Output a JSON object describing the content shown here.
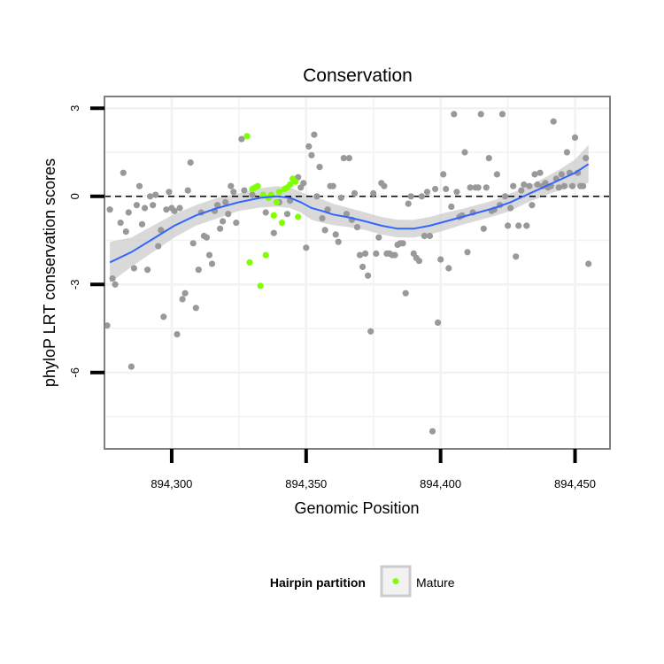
{
  "chart_data": {
    "type": "scatter",
    "title": "Conservation",
    "xlabel": "Genomic Position",
    "ylabel": "phyloP LRT conservation scores",
    "xlim": [
      894275,
      894463
    ],
    "ylim": [
      -8.6,
      3.4
    ],
    "x_ticks": [
      894300,
      894350,
      894400,
      894450
    ],
    "x_tick_labels": [
      "894,300",
      "894,350",
      "894,400",
      "894,450"
    ],
    "y_ticks": [
      3,
      0,
      -3,
      -6
    ],
    "y_tick_labels": [
      "3",
      "0",
      "-3",
      "-6"
    ],
    "reference_line_y": 0,
    "grid": true,
    "legend": {
      "title": "Hairpin partition",
      "position": "bottom",
      "entries": [
        {
          "name": "Mature",
          "color": "#7fff00"
        }
      ]
    },
    "colors": {
      "points": "#999999",
      "mature": "#7fff00",
      "smooth_line": "#3366ff",
      "smooth_band": "#cccccc",
      "panel_border": "#7f7f7f",
      "grid": "#f2f2f2"
    },
    "series": [
      {
        "name": "",
        "color": "#999999",
        "points": [
          [
            894276,
            -4.4
          ],
          [
            894277,
            -0.45
          ],
          [
            894278,
            -2.8
          ],
          [
            894279,
            -3.0
          ],
          [
            894281,
            -0.9
          ],
          [
            894282,
            0.8
          ],
          [
            894283,
            -1.2
          ],
          [
            894284,
            -0.55
          ],
          [
            894285,
            -5.8
          ],
          [
            894286,
            -2.45
          ],
          [
            894287,
            -0.3
          ],
          [
            894288,
            0.35
          ],
          [
            894289,
            -0.95
          ],
          [
            894290,
            -0.4
          ],
          [
            894291,
            -2.5
          ],
          [
            894292,
            0.0
          ],
          [
            894293,
            -0.3
          ],
          [
            894294,
            0.05
          ],
          [
            894295,
            -1.7
          ],
          [
            894296,
            -1.15
          ],
          [
            894297,
            -4.1
          ],
          [
            894298,
            -0.45
          ],
          [
            894299,
            0.15
          ],
          [
            894300,
            -0.4
          ],
          [
            894301,
            -0.5
          ],
          [
            894302,
            -4.7
          ],
          [
            894303,
            -0.4
          ],
          [
            894304,
            -3.5
          ],
          [
            894305,
            -3.3
          ],
          [
            894306,
            0.2
          ],
          [
            894307,
            1.15
          ],
          [
            894308,
            -1.6
          ],
          [
            894309,
            -3.8
          ],
          [
            894310,
            -2.5
          ],
          [
            894311,
            -0.55
          ],
          [
            894312,
            -1.35
          ],
          [
            894313,
            -1.4
          ],
          [
            894314,
            -2.0
          ],
          [
            894315,
            -2.3
          ],
          [
            894316,
            -0.5
          ],
          [
            894317,
            -0.3
          ],
          [
            894318,
            -1.1
          ],
          [
            894319,
            -0.85
          ],
          [
            894320,
            -0.2
          ],
          [
            894321,
            -0.6
          ],
          [
            894322,
            0.35
          ],
          [
            894323,
            0.15
          ],
          [
            894324,
            -0.9
          ],
          [
            894326,
            1.95
          ],
          [
            894327,
            0.2
          ],
          [
            894330,
            0.05
          ],
          [
            894335,
            -0.55
          ],
          [
            894338,
            -1.25
          ],
          [
            894340,
            -0.2
          ],
          [
            894343,
            -0.6
          ],
          [
            894344,
            -0.15
          ],
          [
            894347,
            0.65
          ],
          [
            894348,
            0.3
          ],
          [
            894349,
            0.45
          ],
          [
            894350,
            -1.75
          ],
          [
            894351,
            1.7
          ],
          [
            894352,
            1.4
          ],
          [
            894353,
            2.1
          ],
          [
            894354,
            0.0
          ],
          [
            894355,
            1.0
          ],
          [
            894356,
            -0.75
          ],
          [
            894357,
            -1.15
          ],
          [
            894358,
            -0.45
          ],
          [
            894359,
            0.35
          ],
          [
            894360,
            0.35
          ],
          [
            894361,
            -1.3
          ],
          [
            894362,
            -1.55
          ],
          [
            894363,
            -0.05
          ],
          [
            894364,
            1.3
          ],
          [
            894365,
            -0.6
          ],
          [
            894366,
            1.3
          ],
          [
            894367,
            -0.8
          ],
          [
            894368,
            0.1
          ],
          [
            894369,
            -1.05
          ],
          [
            894370,
            -2.0
          ],
          [
            894371,
            -2.4
          ],
          [
            894372,
            -1.95
          ],
          [
            894373,
            -2.7
          ],
          [
            894374,
            -4.6
          ],
          [
            894375,
            0.1
          ],
          [
            894376,
            -1.95
          ],
          [
            894377,
            -1.4
          ],
          [
            894378,
            0.45
          ],
          [
            894379,
            0.35
          ],
          [
            894380,
            -1.95
          ],
          [
            894381,
            -1.95
          ],
          [
            894382,
            -2.0
          ],
          [
            894383,
            -2.0
          ],
          [
            894384,
            -1.65
          ],
          [
            894385,
            -1.6
          ],
          [
            894386,
            -1.6
          ],
          [
            894387,
            -3.3
          ],
          [
            894388,
            -0.25
          ],
          [
            894389,
            0.0
          ],
          [
            894390,
            -1.95
          ],
          [
            894391,
            -2.1
          ],
          [
            894392,
            -2.2
          ],
          [
            894393,
            0.0
          ],
          [
            894394,
            -1.35
          ],
          [
            894395,
            0.15
          ],
          [
            894396,
            -1.35
          ],
          [
            894397,
            -8.0
          ],
          [
            894398,
            0.25
          ],
          [
            894399,
            -4.3
          ],
          [
            894400,
            -2.15
          ],
          [
            894401,
            0.75
          ],
          [
            894402,
            0.25
          ],
          [
            894403,
            -2.45
          ],
          [
            894404,
            -0.35
          ],
          [
            894405,
            2.8
          ],
          [
            894406,
            0.15
          ],
          [
            894407,
            -0.7
          ],
          [
            894408,
            -0.65
          ],
          [
            894409,
            1.5
          ],
          [
            894410,
            -1.9
          ],
          [
            894411,
            0.3
          ],
          [
            894412,
            -0.55
          ],
          [
            894413,
            0.3
          ],
          [
            894414,
            0.3
          ],
          [
            894415,
            2.8
          ],
          [
            894416,
            -1.1
          ],
          [
            894417,
            0.3
          ],
          [
            894418,
            1.3
          ],
          [
            894419,
            -0.5
          ],
          [
            894420,
            -0.45
          ],
          [
            894421,
            0.75
          ],
          [
            894422,
            -0.3
          ],
          [
            894423,
            2.8
          ],
          [
            894424,
            0.0
          ],
          [
            894425,
            -1.0
          ],
          [
            894426,
            -0.4
          ],
          [
            894427,
            0.35
          ],
          [
            894428,
            -2.05
          ],
          [
            894429,
            -1.0
          ],
          [
            894430,
            0.2
          ],
          [
            894431,
            0.4
          ],
          [
            894432,
            -1.0
          ],
          [
            894433,
            0.35
          ],
          [
            894434,
            -0.3
          ],
          [
            894435,
            0.75
          ],
          [
            894436,
            0.4
          ],
          [
            894437,
            0.8
          ],
          [
            894438,
            0.35
          ],
          [
            894439,
            0.45
          ],
          [
            894440,
            0.3
          ],
          [
            894441,
            0.35
          ],
          [
            894442,
            2.55
          ],
          [
            894443,
            0.6
          ],
          [
            894444,
            0.3
          ],
          [
            894445,
            0.75
          ],
          [
            894446,
            0.35
          ],
          [
            894447,
            1.5
          ],
          [
            894448,
            0.8
          ],
          [
            894449,
            0.35
          ],
          [
            894450,
            2.0
          ],
          [
            894451,
            0.8
          ],
          [
            894452,
            0.35
          ],
          [
            894453,
            0.35
          ],
          [
            894454,
            1.3
          ],
          [
            894455,
            -2.3
          ]
        ]
      },
      {
        "name": "Mature",
        "color": "#7fff00",
        "points": [
          [
            894328,
            2.05
          ],
          [
            894329,
            -2.25
          ],
          [
            894330,
            0.25
          ],
          [
            894331,
            0.3
          ],
          [
            894332,
            0.35
          ],
          [
            894333,
            -3.05
          ],
          [
            894334,
            0.05
          ],
          [
            894335,
            -2.0
          ],
          [
            894336,
            -0.05
          ],
          [
            894337,
            0.05
          ],
          [
            894338,
            -0.65
          ],
          [
            894339,
            -0.2
          ],
          [
            894340,
            0.15
          ],
          [
            894341,
            -0.9
          ],
          [
            894342,
            0.25
          ],
          [
            894343,
            0.3
          ],
          [
            894344,
            0.4
          ],
          [
            894345,
            0.6
          ],
          [
            894346,
            0.5
          ],
          [
            894347,
            -0.7
          ]
        ]
      }
    ],
    "smooth": {
      "color": "#3366ff",
      "x": [
        894277,
        894285,
        894293,
        894301,
        894309,
        894317,
        894325,
        894333,
        894339,
        894344,
        894348,
        894352,
        894356,
        894360,
        894366,
        894372,
        894378,
        894384,
        894390,
        894396,
        894402,
        894408,
        894414,
        894420,
        894426,
        894432,
        894438,
        894444,
        894450,
        894455
      ],
      "y": [
        -2.25,
        -1.9,
        -1.45,
        -1.0,
        -0.65,
        -0.4,
        -0.2,
        -0.05,
        0.0,
        -0.05,
        -0.2,
        -0.4,
        -0.5,
        -0.62,
        -0.72,
        -0.85,
        -1.0,
        -1.1,
        -1.1,
        -1.0,
        -0.85,
        -0.7,
        -0.55,
        -0.4,
        -0.2,
        0.05,
        0.3,
        0.55,
        0.8,
        1.1
      ],
      "lower": [
        -2.95,
        -2.4,
        -1.9,
        -1.4,
        -1.0,
        -0.75,
        -0.5,
        -0.38,
        -0.35,
        -0.4,
        -0.55,
        -0.8,
        -0.9,
        -0.98,
        -1.05,
        -1.15,
        -1.3,
        -1.4,
        -1.4,
        -1.3,
        -1.15,
        -0.97,
        -0.82,
        -0.67,
        -0.5,
        -0.22,
        0.0,
        0.2,
        0.35,
        0.45
      ],
      "upper": [
        -1.55,
        -1.4,
        -1.0,
        -0.6,
        -0.3,
        -0.05,
        0.1,
        0.28,
        0.35,
        0.3,
        0.15,
        0.0,
        -0.1,
        -0.25,
        -0.4,
        -0.55,
        -0.7,
        -0.8,
        -0.8,
        -0.7,
        -0.55,
        -0.43,
        -0.28,
        -0.13,
        0.1,
        0.32,
        0.6,
        0.9,
        1.25,
        1.75
      ]
    }
  }
}
